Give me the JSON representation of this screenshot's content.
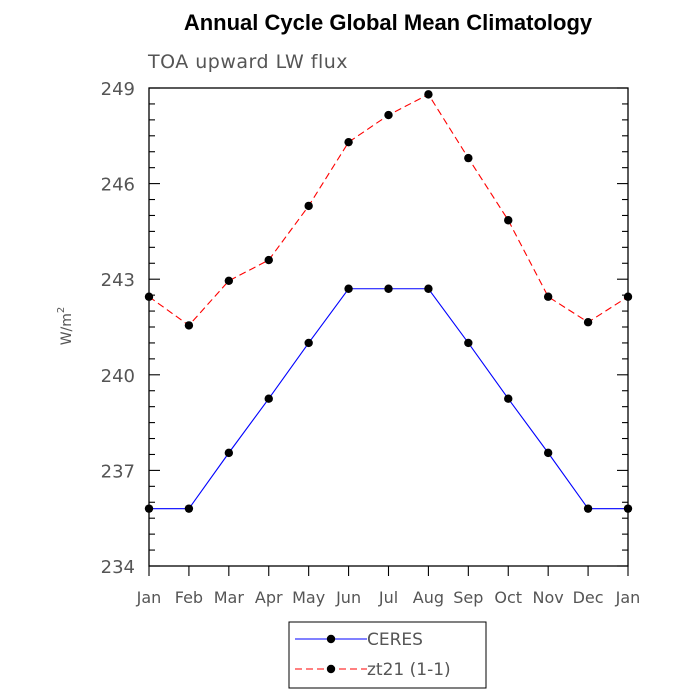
{
  "chart_data": {
    "type": "line",
    "title": "Annual Cycle Global Mean Climatology",
    "subtitle": "TOA upward LW flux",
    "xlabel": "",
    "ylabel": "W/m",
    "ylabel_superscript": "2",
    "ylim": [
      234,
      249
    ],
    "y_ticks": [
      234,
      237,
      240,
      243,
      246,
      249
    ],
    "categories": [
      "Jan",
      "Feb",
      "Mar",
      "Apr",
      "May",
      "Jun",
      "Jul",
      "Aug",
      "Sep",
      "Oct",
      "Nov",
      "Dec",
      "Jan"
    ],
    "series": [
      {
        "name": "CERES",
        "color": "#0000ff",
        "line_style": "solid",
        "values": [
          235.8,
          235.8,
          237.55,
          239.25,
          241.0,
          242.7,
          242.7,
          242.7,
          241.0,
          239.25,
          237.55,
          235.8,
          235.8
        ]
      },
      {
        "name": "zt21 (1-1)",
        "color": "#ff0000",
        "line_style": "dashed",
        "values": [
          242.45,
          241.55,
          242.95,
          243.6,
          245.3,
          247.3,
          248.15,
          248.8,
          246.8,
          244.85,
          242.45,
          241.65,
          242.45
        ]
      }
    ],
    "grid": false,
    "legend_position": "bottom-center",
    "marker": "filled-circle",
    "marker_color": "#000000"
  }
}
